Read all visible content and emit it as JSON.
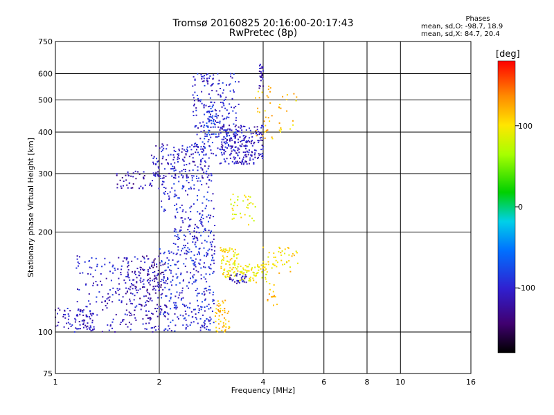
{
  "title": {
    "line1": "Tromsø 20160825 20:16:00-20:17:43",
    "line2": "RwPretec (8p)"
  },
  "phase_stats": {
    "heading": "Phases",
    "line_o": "mean, sd,O: -98.7, 18.9",
    "line_x": "mean, sd,X:  84.7, 20.4"
  },
  "colorbar": {
    "unit_label": "[deg]",
    "ticks": [
      "100",
      "0",
      "-100"
    ],
    "tick_values": [
      100,
      0,
      -100
    ],
    "range": [
      -180,
      180
    ]
  },
  "chart_data": {
    "type": "scatter",
    "xlabel": "Frequency [MHz]",
    "ylabel": "Stationary phase Virtual Height [km]",
    "xscale": "log",
    "yscale": "log",
    "xlim": [
      1,
      16
    ],
    "ylim": [
      75,
      750
    ],
    "xticks": [
      1,
      2,
      4,
      6,
      8,
      10,
      16
    ],
    "yticks": [
      75,
      100,
      200,
      300,
      400,
      500,
      600,
      750
    ],
    "grid_x": [
      2,
      4,
      6,
      8,
      10
    ],
    "grid_y": [
      100,
      200,
      300,
      400,
      500,
      600
    ],
    "grid": true,
    "color_encoding": "phase [deg]",
    "clusters": [
      {
        "freq": [
          1.0,
          1.3
        ],
        "height": [
          100,
          118
        ],
        "phase": -110,
        "n": 60
      },
      {
        "freq": [
          1.15,
          2.0
        ],
        "height": [
          100,
          170
        ],
        "phase": -105,
        "n": 260
      },
      {
        "freq": [
          1.6,
          2.1
        ],
        "height": [
          110,
          170
        ],
        "phase": -125,
        "n": 120
      },
      {
        "freq": [
          2.0,
          2.9
        ],
        "height": [
          100,
          180
        ],
        "phase": -95,
        "n": 280
      },
      {
        "freq": [
          2.2,
          2.9
        ],
        "height": [
          170,
          230
        ],
        "phase": -100,
        "n": 120
      },
      {
        "freq": [
          2.0,
          2.9
        ],
        "height": [
          230,
          300
        ],
        "phase": -95,
        "n": 90
      },
      {
        "freq": [
          1.5,
          2.0
        ],
        "height": [
          270,
          305
        ],
        "phase": -120,
        "n": 50
      },
      {
        "freq": [
          1.9,
          2.8
        ],
        "height": [
          290,
          370
        ],
        "phase": -105,
        "n": 160
      },
      {
        "freq": [
          2.5,
          3.4
        ],
        "height": [
          340,
          600
        ],
        "phase": -100,
        "n": 230
      },
      {
        "freq": [
          3.0,
          4.0
        ],
        "height": [
          320,
          420
        ],
        "phase": -110,
        "n": 220
      },
      {
        "freq": [
          2.7,
          3.0
        ],
        "height": [
          380,
          480
        ],
        "phase": -80,
        "n": 40
      },
      {
        "freq": [
          3.9,
          4.0
        ],
        "height": [
          540,
          640
        ],
        "phase": -115,
        "n": 25
      },
      {
        "freq": [
          3.0,
          3.4
        ],
        "height": [
          145,
          180
        ],
        "phase": 100,
        "n": 80
      },
      {
        "freq": [
          3.4,
          4.1
        ],
        "height": [
          140,
          160
        ],
        "phase": 95,
        "n": 70
      },
      {
        "freq": [
          2.9,
          3.2
        ],
        "height": [
          100,
          125
        ],
        "phase": 115,
        "n": 50
      },
      {
        "freq": [
          3.2,
          3.6
        ],
        "height": [
          140,
          150
        ],
        "phase": -110,
        "n": 30
      },
      {
        "freq": [
          3.2,
          3.8
        ],
        "height": [
          210,
          260
        ],
        "phase": 95,
        "n": 35
      },
      {
        "freq": [
          3.8,
          5.0
        ],
        "height": [
          370,
          560
        ],
        "phase": 115,
        "n": 50
      },
      {
        "freq": [
          4.0,
          5.1
        ],
        "height": [
          150,
          180
        ],
        "phase": 105,
        "n": 45
      },
      {
        "freq": [
          4.1,
          4.4
        ],
        "height": [
          120,
          140
        ],
        "phase": 120,
        "n": 15
      }
    ]
  }
}
